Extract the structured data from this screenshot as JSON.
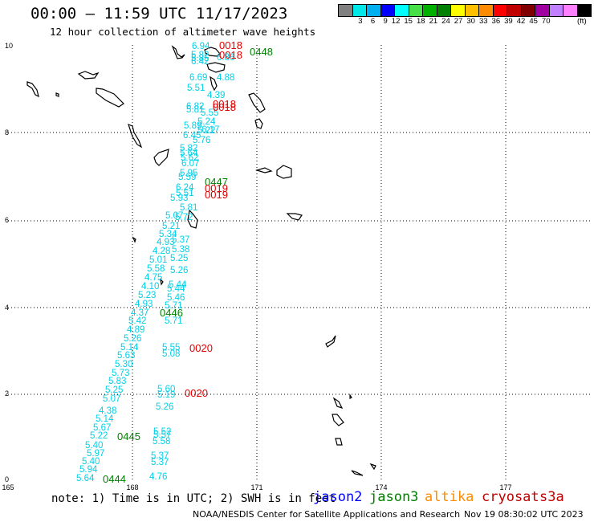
{
  "header": {
    "title": "00:00 – 11:59 UTC 11/17/2023",
    "subtitle": "12 hour collection of altimeter wave heights"
  },
  "colorbar": {
    "colors": [
      "#808080",
      "#00e8e8",
      "#00b0f0",
      "#0000ff",
      "#00ffff",
      "#48e048",
      "#00b000",
      "#008000",
      "#ffff00",
      "#ffc000",
      "#ff8c00",
      "#ff0000",
      "#c00000",
      "#800000",
      "#a000a0",
      "#c080ff",
      "#ff80ff",
      "#000000"
    ],
    "labels": [
      "3",
      "6",
      "9",
      "12",
      "15",
      "18",
      "21",
      "24",
      "27",
      "30",
      "33",
      "36",
      "39",
      "42",
      "45",
      "70"
    ],
    "units": "(ft)"
  },
  "axes": {
    "x_ticks": [
      "165",
      "168",
      "171",
      "174",
      "177"
    ],
    "y_ticks": [
      "0",
      "2",
      "4",
      "6",
      "8",
      "10"
    ]
  },
  "footer": {
    "note": "note: 1) Time is in UTC; 2) SWH is in feet",
    "legend": [
      {
        "name": "jason2",
        "color": "#0000ff"
      },
      {
        "name": "jason3",
        "color": "#008000"
      },
      {
        "name": "altika",
        "color": "#ff8c00"
      },
      {
        "name": "cryosat",
        "color": "#c00000"
      },
      {
        "name": "s3a",
        "color": "#c00000"
      }
    ],
    "credit": "NOAA/NESDIS Center for Satellite Applications and Research",
    "generated": "Nov 19 08:30:02 UTC 2023"
  },
  "track_colors": {
    "swh": "#00d0e8",
    "jason3": "#008000",
    "cryosat": "#e00000"
  },
  "swh_values": [
    "6.94",
    "5.82",
    "5.85",
    "6.42",
    "6.69",
    "5.51",
    "4.88",
    "4.39",
    "6.82",
    "5.81",
    "5.55",
    "5.24",
    "5.89",
    "5.22",
    "6.45",
    "5.76",
    "5.82",
    "5.64",
    "6.07",
    "5.62",
    "5.95",
    "5.59",
    "6.24",
    "5.51",
    "5.93",
    "5.81",
    "5.07",
    "5.72",
    "5.21",
    "5.34",
    "4.93",
    "5.37",
    "4.28",
    "5.38",
    "5.01",
    "5.25",
    "5.58",
    "5.26",
    "4.75",
    "4.10",
    "5.44",
    "5.44",
    "5.23",
    "5.46",
    "4.93",
    "5.71",
    "4.37",
    "5.71",
    "5.42",
    "4.89",
    "5.26",
    "5.14",
    "5.55",
    "5.63",
    "5.08",
    "5.30",
    "5.73",
    "5.83",
    "5.25",
    "5.07",
    "4.38",
    "5.14",
    "5.67",
    "5.22",
    "5.97",
    "5.40",
    "5.40",
    "5.94",
    "5.64",
    "5.60",
    "5.19",
    "5.26",
    "5.52",
    "5.57",
    "5.58",
    "5.37",
    "5.37",
    "4.76",
    "6.17",
    "6.86"
  ],
  "pass_labels": [
    {
      "label": "0018",
      "sat": "cryosat"
    },
    {
      "label": "0018",
      "sat": "cryosat"
    },
    {
      "label": "0448",
      "sat": "jason3"
    },
    {
      "label": "0018",
      "sat": "cryosat"
    },
    {
      "label": "0018",
      "sat": "cryosat"
    },
    {
      "label": "0447",
      "sat": "jason3"
    },
    {
      "label": "0019",
      "sat": "cryosat"
    },
    {
      "label": "0019",
      "sat": "cryosat"
    },
    {
      "label": "0446",
      "sat": "jason3"
    },
    {
      "label": "0020",
      "sat": "cryosat"
    },
    {
      "label": "0020",
      "sat": "cryosat"
    },
    {
      "label": "0445",
      "sat": "jason3"
    },
    {
      "label": "0444",
      "sat": "jason3"
    }
  ]
}
